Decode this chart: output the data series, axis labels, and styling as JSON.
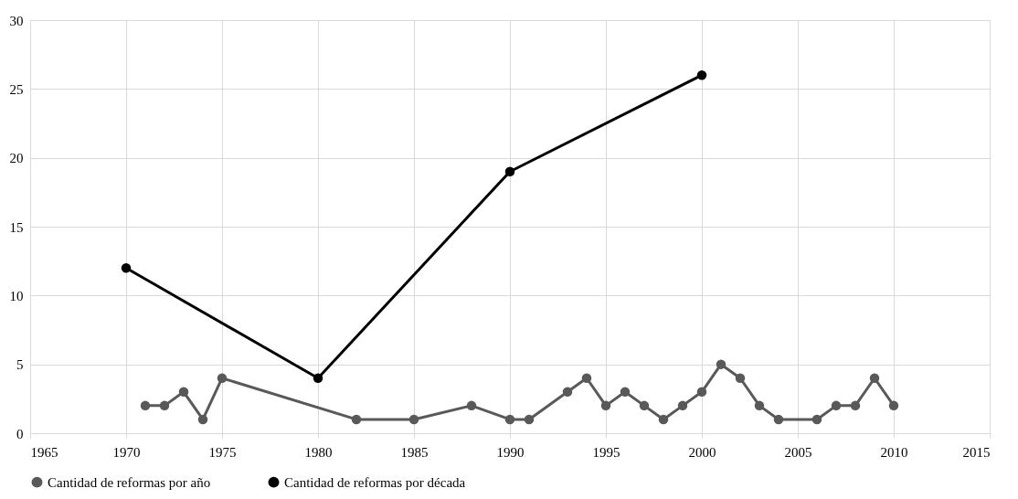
{
  "chart_data": {
    "type": "line",
    "xlim": [
      1965,
      2015
    ],
    "xticks": [
      1965,
      1970,
      1975,
      1980,
      1985,
      1990,
      1995,
      2000,
      2005,
      2010,
      2015
    ],
    "ylim": [
      0,
      30
    ],
    "yticks": [
      0,
      5,
      10,
      15,
      20,
      25,
      30
    ],
    "grid": true,
    "legend": "bottom",
    "marker": "circle",
    "line_style": "solid",
    "series": [
      {
        "name": "Cantidad de reformas por año",
        "color": "#595959",
        "x": [
          1971,
          1972,
          1973,
          1974,
          1975,
          1982,
          1985,
          1988,
          1990,
          1991,
          1993,
          1994,
          1995,
          1996,
          1997,
          1998,
          1999,
          2000,
          2001,
          2002,
          2003,
          2004,
          2006,
          2007,
          2008,
          2009,
          2010
        ],
        "values": [
          2,
          2,
          3,
          1,
          4,
          1,
          1,
          2,
          1,
          1,
          3,
          4,
          2,
          3,
          2,
          1,
          2,
          3,
          5,
          4,
          2,
          1,
          1,
          2,
          2,
          4,
          2
        ]
      },
      {
        "name": "Cantidad de reformas por década",
        "color": "#000000",
        "x": [
          1970,
          1980,
          1990,
          2000
        ],
        "values": [
          12,
          4,
          19,
          26
        ]
      }
    ]
  }
}
